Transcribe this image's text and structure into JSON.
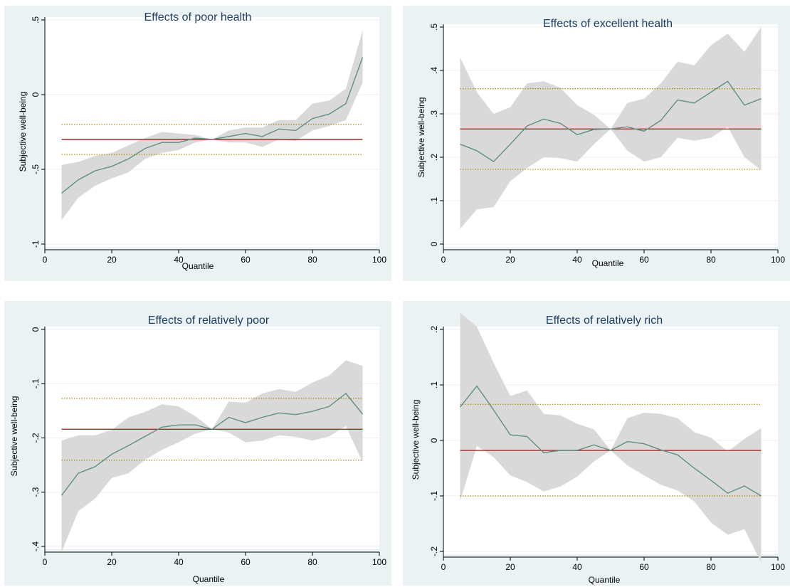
{
  "colors": {
    "panel_bg": "#eaf2f3",
    "plot_bg": "#ffffff",
    "band": "#d9d9d9",
    "quantile_line": "#5f8f86",
    "ols_line": "#a52a2a",
    "ci_dotted": "#b8860b",
    "grid": "#eaf2f3",
    "title": "#1f3f66"
  },
  "chart_data": [
    {
      "type": "line",
      "title": "Effects of poor health",
      "xlabel": "Quantile",
      "ylabel": "Subjective well-being",
      "xlim": [
        0,
        100
      ],
      "ylim": [
        -1,
        0.5
      ],
      "xticks": [
        0,
        20,
        40,
        60,
        80,
        100
      ],
      "xtick_labels": [
        "0",
        "20",
        "40",
        "60",
        "80",
        "100"
      ],
      "yticks": [
        -1,
        -0.5,
        0,
        0.5
      ],
      "ytick_labels": [
        "-1",
        "-.5",
        "0",
        ".5"
      ],
      "x": [
        5,
        10,
        15,
        20,
        25,
        30,
        35,
        40,
        45,
        50,
        55,
        60,
        65,
        70,
        75,
        80,
        85,
        90,
        95
      ],
      "series": [
        {
          "values": [
            -0.66,
            -0.57,
            -0.51,
            -0.48,
            -0.43,
            -0.36,
            -0.32,
            -0.32,
            -0.29,
            -0.3,
            -0.28,
            -0.26,
            -0.28,
            -0.23,
            -0.24,
            -0.16,
            -0.13,
            -0.06,
            0.25
          ],
          "lower": [
            -0.84,
            -0.69,
            -0.61,
            -0.56,
            -0.52,
            -0.43,
            -0.39,
            -0.37,
            -0.32,
            -0.3,
            -0.32,
            -0.32,
            -0.35,
            -0.3,
            -0.31,
            -0.24,
            -0.21,
            -0.17,
            0.08
          ],
          "upper": [
            -0.47,
            -0.45,
            -0.41,
            -0.39,
            -0.34,
            -0.29,
            -0.25,
            -0.26,
            -0.27,
            -0.3,
            -0.24,
            -0.22,
            -0.22,
            -0.17,
            -0.17,
            -0.06,
            -0.04,
            0.04,
            0.43
          ]
        }
      ],
      "ols": -0.3,
      "ci": [
        -0.4,
        -0.2
      ]
    },
    {
      "type": "line",
      "title": "Effects of excellent health",
      "xlabel": "Quantile",
      "ylabel": "Subjective well-being",
      "xlim": [
        0,
        100
      ],
      "ylim": [
        0,
        0.5
      ],
      "xticks": [
        0,
        20,
        40,
        60,
        80,
        100
      ],
      "xtick_labels": [
        "0",
        "20",
        "40",
        "60",
        "80",
        "100"
      ],
      "yticks": [
        0,
        0.1,
        0.2,
        0.3,
        0.4,
        0.5
      ],
      "ytick_labels": [
        "0",
        ".1",
        ".2",
        ".3",
        ".4",
        ".5"
      ],
      "x": [
        5,
        10,
        15,
        20,
        25,
        30,
        35,
        40,
        45,
        50,
        55,
        60,
        65,
        70,
        75,
        80,
        85,
        90,
        95
      ],
      "series": [
        {
          "values": [
            0.23,
            0.215,
            0.19,
            0.23,
            0.272,
            0.288,
            0.278,
            0.252,
            0.264,
            0.265,
            0.27,
            0.26,
            0.285,
            0.332,
            0.325,
            0.35,
            0.375,
            0.32,
            0.335
          ],
          "lower": [
            0.035,
            0.08,
            0.085,
            0.145,
            0.175,
            0.2,
            0.198,
            0.19,
            0.23,
            0.265,
            0.215,
            0.19,
            0.2,
            0.245,
            0.238,
            0.245,
            0.27,
            0.2,
            0.17
          ],
          "upper": [
            0.43,
            0.35,
            0.3,
            0.315,
            0.37,
            0.375,
            0.36,
            0.32,
            0.298,
            0.265,
            0.325,
            0.335,
            0.37,
            0.42,
            0.412,
            0.458,
            0.485,
            0.443,
            0.5
          ]
        }
      ],
      "ols": 0.265,
      "ci": [
        0.172,
        0.358
      ]
    },
    {
      "type": "line",
      "title": "Effects of relatively poor",
      "xlabel": "Quantile",
      "ylabel": "Subjective well-being",
      "xlim": [
        0,
        100
      ],
      "ylim": [
        -0.4,
        0
      ],
      "xticks": [
        0,
        20,
        40,
        60,
        80,
        100
      ],
      "xtick_labels": [
        "0",
        "20",
        "40",
        "60",
        "80",
        "100"
      ],
      "yticks": [
        -0.4,
        -0.3,
        -0.2,
        -0.1,
        0
      ],
      "ytick_labels": [
        "-.4",
        "-.3",
        "-.2",
        "-.1",
        "0"
      ],
      "x": [
        5,
        10,
        15,
        20,
        25,
        30,
        35,
        40,
        45,
        50,
        55,
        60,
        65,
        70,
        75,
        80,
        85,
        90,
        95
      ],
      "series": [
        {
          "values": [
            -0.306,
            -0.265,
            -0.253,
            -0.23,
            -0.214,
            -0.197,
            -0.18,
            -0.176,
            -0.176,
            -0.184,
            -0.162,
            -0.172,
            -0.162,
            -0.154,
            -0.157,
            -0.151,
            -0.142,
            -0.118,
            -0.156
          ],
          "lower": [
            -0.41,
            -0.335,
            -0.312,
            -0.274,
            -0.265,
            -0.24,
            -0.222,
            -0.208,
            -0.192,
            -0.184,
            -0.19,
            -0.208,
            -0.205,
            -0.195,
            -0.198,
            -0.205,
            -0.197,
            -0.178,
            -0.245
          ],
          "upper": [
            -0.205,
            -0.195,
            -0.195,
            -0.185,
            -0.162,
            -0.152,
            -0.138,
            -0.142,
            -0.16,
            -0.184,
            -0.133,
            -0.135,
            -0.118,
            -0.11,
            -0.115,
            -0.098,
            -0.085,
            -0.057,
            -0.067
          ]
        }
      ],
      "ols": -0.184,
      "ci": [
        -0.241,
        -0.127
      ]
    },
    {
      "type": "line",
      "title": "Effects of relatively rich",
      "xlabel": "Quantile",
      "ylabel": "Subjective well-being",
      "xlim": [
        0,
        100
      ],
      "ylim": [
        -0.2,
        0.2
      ],
      "xticks": [
        0,
        20,
        40,
        60,
        80,
        100
      ],
      "xtick_labels": [
        "0",
        "20",
        "40",
        "60",
        "80",
        "100"
      ],
      "yticks": [
        -0.2,
        -0.1,
        0,
        0.1,
        0.2
      ],
      "ytick_labels": [
        "-.2",
        "-.1",
        "0",
        ".1",
        ".2"
      ],
      "x": [
        5,
        10,
        15,
        20,
        25,
        30,
        35,
        40,
        45,
        50,
        55,
        60,
        65,
        70,
        75,
        80,
        85,
        90,
        95
      ],
      "series": [
        {
          "values": [
            0.06,
            0.098,
            0.055,
            0.01,
            0.007,
            -0.022,
            -0.018,
            -0.018,
            -0.008,
            -0.018,
            -0.002,
            -0.006,
            -0.017,
            -0.026,
            -0.05,
            -0.072,
            -0.095,
            -0.082,
            -0.1
          ],
          "lower": [
            -0.11,
            -0.01,
            -0.03,
            -0.063,
            -0.075,
            -0.092,
            -0.083,
            -0.065,
            -0.038,
            -0.018,
            -0.045,
            -0.063,
            -0.08,
            -0.09,
            -0.11,
            -0.148,
            -0.17,
            -0.16,
            -0.22
          ],
          "upper": [
            0.23,
            0.205,
            0.14,
            0.08,
            0.09,
            0.048,
            0.045,
            0.03,
            0.02,
            -0.018,
            0.04,
            0.05,
            0.048,
            0.04,
            0.015,
            0.005,
            -0.02,
            0.003,
            0.022
          ]
        }
      ],
      "ols": -0.018,
      "ci": [
        -0.1,
        0.065
      ]
    }
  ]
}
